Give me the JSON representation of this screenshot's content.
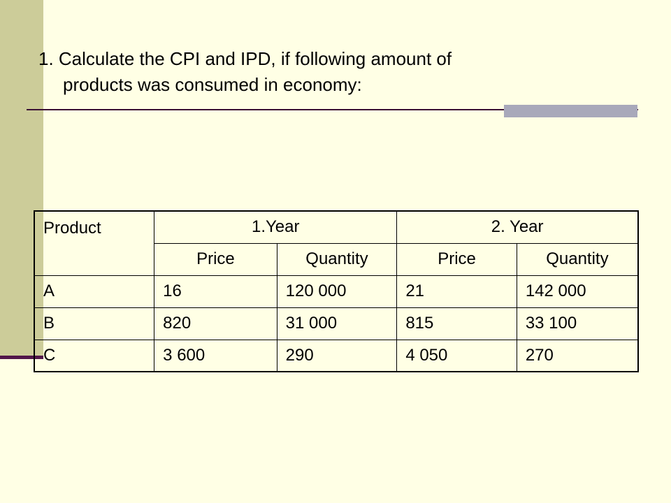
{
  "slide": {
    "title_line1": "1. Calculate the CPI and IPD, if following amount of",
    "title_line2": "products was consumed in economy:"
  },
  "table": {
    "product_header": "Product",
    "year1_header": "1.Year",
    "year2_header": "2. Year",
    "sub_headers": [
      "Price",
      "Quantity",
      "Price",
      "Quantity"
    ],
    "rows": [
      {
        "product": "A",
        "y1_price": "16",
        "y1_quantity": "120 000",
        "y2_price": "21",
        "y2_quantity": "142 000"
      },
      {
        "product": "B",
        "y1_price": "820",
        "y1_quantity": "31 000",
        "y2_price": "815",
        "y2_quantity": "33 100"
      },
      {
        "product": "C",
        "y1_price": "3 600",
        "y1_quantity": "290",
        "y2_price": "4 050",
        "y2_quantity": "270"
      }
    ]
  }
}
